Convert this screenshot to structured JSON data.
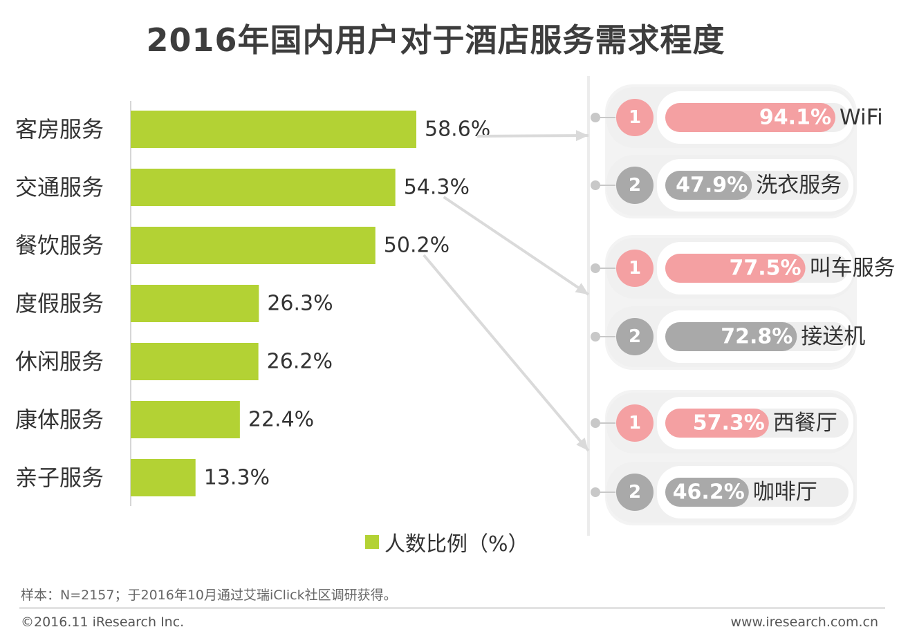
{
  "title": "2016年国内用户对于酒店服务需求程度",
  "chart_data": {
    "type": "bar",
    "orientation": "horizontal",
    "categories": [
      "客房服务",
      "交通服务",
      "餐饮服务",
      "度假服务",
      "休闲服务",
      "康体服务",
      "亲子服务"
    ],
    "values": [
      58.6,
      54.3,
      50.2,
      26.3,
      26.2,
      22.4,
      13.3
    ],
    "value_labels": [
      "58.6%",
      "54.3%",
      "50.2%",
      "26.3%",
      "26.2%",
      "22.4%",
      "13.3%"
    ],
    "series_name": "人数比例（%）",
    "xlim": [
      0,
      100
    ],
    "color": "#b3d234",
    "detail_groups": [
      {
        "parent": "客房服务",
        "items": [
          {
            "rank": "1",
            "value": 94.1,
            "value_label": "94.1%",
            "name": "WiFi"
          },
          {
            "rank": "2",
            "value": 47.9,
            "value_label": "47.9%",
            "name": "洗衣服务"
          }
        ]
      },
      {
        "parent": "交通服务",
        "items": [
          {
            "rank": "1",
            "value": 77.5,
            "value_label": "77.5%",
            "name": "叫车服务"
          },
          {
            "rank": "2",
            "value": 72.8,
            "value_label": "72.8%",
            "name": "接送机"
          }
        ]
      },
      {
        "parent": "餐饮服务",
        "items": [
          {
            "rank": "1",
            "value": 57.3,
            "value_label": "57.3%",
            "name": "西餐厅"
          },
          {
            "rank": "2",
            "value": 46.2,
            "value_label": "46.2%",
            "name": "咖啡厅"
          }
        ]
      }
    ]
  },
  "legend": {
    "label": "人数比例（%）"
  },
  "footer": {
    "note": "样本：N=2157；于2016年10月通过艾瑞iClick社区调研获得。",
    "copyright": "©2016.11 iResearch Inc.",
    "website": "www.iresearch.com.cn"
  },
  "colors": {
    "bar": "#b3d234",
    "rank1": "#f4a0a2",
    "rank2": "#a9a9a9",
    "track": "#eeeeee",
    "connector": "#dadada"
  }
}
